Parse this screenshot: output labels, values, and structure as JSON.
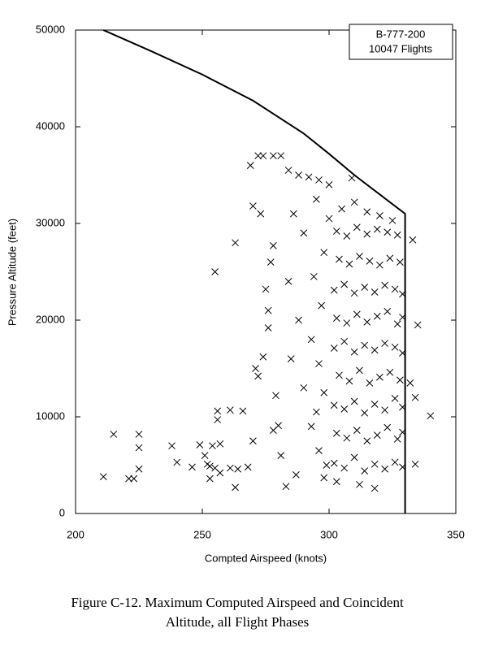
{
  "chart_data": {
    "type": "scatter",
    "xlabel": "Compted Airspeed (knots)",
    "ylabel": "Pressure Altitude (feet)",
    "annotations": [
      "B-777-200",
      "10047 Flights"
    ],
    "caption": [
      "Figure C-12.  Maximum Computed Airspeed and Coincident",
      "Altitude, all Flight Phases"
    ],
    "xlim": [
      200,
      350
    ],
    "xticks": [
      200,
      250,
      300,
      350
    ],
    "ylim": [
      0,
      50000
    ],
    "yticks": [
      0,
      10000,
      20000,
      30000,
      40000,
      50000
    ],
    "series": [
      {
        "type": "scatter",
        "marker": "x",
        "color": "#000000",
        "x": [
          211,
          215,
          221,
          223,
          225,
          225,
          225,
          238,
          240,
          246,
          249,
          251,
          252,
          253,
          253,
          254,
          255,
          256,
          256,
          257,
          257,
          261,
          261,
          263,
          264,
          266,
          268,
          255,
          263,
          270,
          271,
          272,
          270,
          273,
          272,
          274,
          278,
          281,
          269,
          283,
          340,
          334,
          333,
          335,
          334,
          332,
          309,
          276,
          277,
          278,
          275,
          276,
          274,
          279,
          280,
          278,
          281,
          287,
          298,
          303,
          312,
          318,
          284,
          288,
          292,
          296,
          300,
          286,
          290,
          284,
          288,
          285,
          290,
          293,
          296,
          299,
          302,
          306,
          310,
          314,
          318,
          322,
          326,
          329,
          303,
          307,
          311,
          315,
          319,
          323,
          327,
          329,
          302,
          306,
          310,
          314,
          318,
          322,
          326,
          329,
          304,
          308,
          312,
          316,
          320,
          324,
          328,
          302,
          306,
          310,
          314,
          318,
          322,
          326,
          329,
          303,
          307,
          311,
          315,
          319,
          323,
          327,
          329,
          302,
          306,
          310,
          314,
          318,
          322,
          326,
          329,
          304,
          308,
          312,
          316,
          320,
          324,
          328,
          303,
          307,
          311,
          315,
          319,
          323,
          327,
          305,
          310,
          315,
          320,
          325,
          300,
          295,
          298,
          294,
          297,
          293,
          296,
          298,
          295
        ],
        "values": [
          3800,
          8200,
          3600,
          3600,
          8200,
          6800,
          4600,
          7000,
          5300,
          4800,
          7100,
          6000,
          5100,
          4900,
          3600,
          7000,
          4700,
          10600,
          9700,
          7200,
          4200,
          10700,
          4700,
          2700,
          4600,
          10600,
          4800,
          25000,
          28000,
          7500,
          15000,
          14200,
          31800,
          31000,
          37000,
          37000,
          37000,
          37000,
          36000,
          2800,
          10100,
          5100,
          28300,
          19500,
          12000,
          13500,
          34700,
          21000,
          26000,
          27700,
          23200,
          19200,
          16200,
          12200,
          9100,
          8600,
          6000,
          4000,
          3700,
          3300,
          3000,
          2600,
          35500,
          35000,
          34800,
          34500,
          34000,
          31000,
          29000,
          24000,
          20000,
          16000,
          13000,
          9000,
          6500,
          5000,
          5200,
          4700,
          5800,
          4400,
          5100,
          4600,
          5300,
          4800,
          8300,
          7800,
          8600,
          7500,
          8100,
          8900,
          7700,
          8400,
          11200,
          10800,
          11600,
          10400,
          11300,
          10700,
          11900,
          11000,
          14300,
          13700,
          14800,
          13500,
          14100,
          14600,
          13800,
          17100,
          17800,
          16700,
          17400,
          16900,
          17600,
          17200,
          16600,
          20200,
          19700,
          20600,
          19800,
          20400,
          20900,
          19600,
          20300,
          23100,
          23700,
          22800,
          23400,
          22900,
          23600,
          23200,
          22700,
          26300,
          25800,
          26600,
          26100,
          25700,
          26400,
          26000,
          29200,
          28700,
          29600,
          28900,
          29400,
          29100,
          28800,
          31500,
          32200,
          31200,
          30800,
          30300,
          30500,
          32500,
          27000,
          24500,
          21500,
          18000,
          15500,
          12500,
          10500
        ]
      },
      {
        "type": "line",
        "color": "#000000",
        "x": [
          211,
          230,
          250,
          270,
          290,
          300,
          310,
          320,
          330,
          330
        ],
        "values": [
          50000,
          47800,
          45400,
          42700,
          39300,
          37200,
          35000,
          33000,
          31000,
          0
        ]
      }
    ]
  }
}
